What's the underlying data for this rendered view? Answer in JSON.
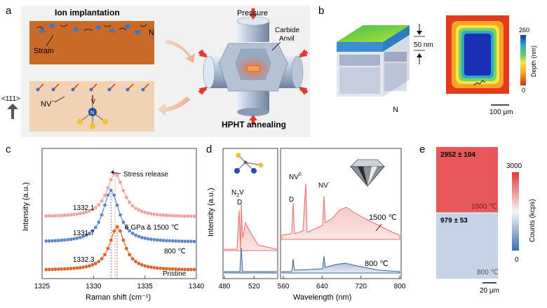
{
  "panels": {
    "a": {
      "letter": "a",
      "ion_title": "Ion implantation",
      "strain": "Strain",
      "n_label": "N",
      "axis_label": "<111>",
      "nv_label": "NV",
      "nv_sup": "−",
      "v_label": "V",
      "n_atom": "N",
      "pressure": "Pressure",
      "carbide1": "Carbide",
      "carbide2": "Anvil",
      "hpht": "HPHT annealing"
    },
    "b": {
      "letter": "b",
      "thickness": "50 nm",
      "n_label": "N",
      "colorbar_title": "Depth (nm)",
      "cbar_max": "260",
      "cbar_min": "0",
      "scalebar": "100 µm"
    },
    "c": {
      "letter": "c"
    },
    "d": {
      "letter": "d",
      "n2v": "N",
      "n2v_sub": "2",
      "n2v_tail": "V",
      "d1": "D",
      "d2": "D",
      "nv0": "NV",
      "nv0_sup": "0",
      "nvm": "NV",
      "nvm_sup": "-",
      "t1500": "1500 ℃",
      "t800": "800 ℃"
    },
    "e": {
      "letter": "e",
      "val_top": "2952 ± 104",
      "val_bot": "979 ± 53",
      "t_top": "1500 ℃",
      "t_bot": "800 ℃",
      "cbar_max": "3000",
      "cbar_min": "0",
      "colorbar_title": "Counts (kcps)",
      "scalebar": "20 µm"
    }
  },
  "chart_data": [
    {
      "type": "scatter",
      "panel": "c",
      "xlabel": "Raman shift (cm⁻¹)",
      "ylabel": "Intensity (a.u.)",
      "xlim": [
        1325,
        1340
      ],
      "xticks": [
        "1325",
        "1330",
        "1335",
        "1340"
      ],
      "series": [
        {
          "name": "6 GPa & 1500 ℃",
          "peak": 1332.1,
          "peak_label": "1332.1",
          "color": "#f0a0a0"
        },
        {
          "name": "800 ℃",
          "peak": 1331.7,
          "peak_label": "1331.7",
          "color": "#5b86c6"
        },
        {
          "name": "Pristine",
          "peak": 1332.3,
          "peak_label": "1332.3",
          "color": "#d9622b"
        }
      ],
      "annotation": "Stress release"
    },
    {
      "type": "line",
      "panel": "d",
      "xlabel": "Wavelength (nm)",
      "ylabel": "Intensity (a.u.)",
      "left_xlim": [
        480,
        550
      ],
      "left_xticks": [
        "480",
        "520"
      ],
      "right_xlim": [
        560,
        800
      ],
      "right_xticks": [
        "560",
        "640",
        "720",
        "800"
      ],
      "series": [
        {
          "name": "1500 ℃",
          "color": "#e07070"
        },
        {
          "name": "800 ℃",
          "color": "#3f6590"
        }
      ],
      "peaks_nm": {
        "N2V": 503,
        "D_left": 505,
        "D_right": 575,
        "NV0": 575,
        "NV-": 637
      }
    }
  ]
}
